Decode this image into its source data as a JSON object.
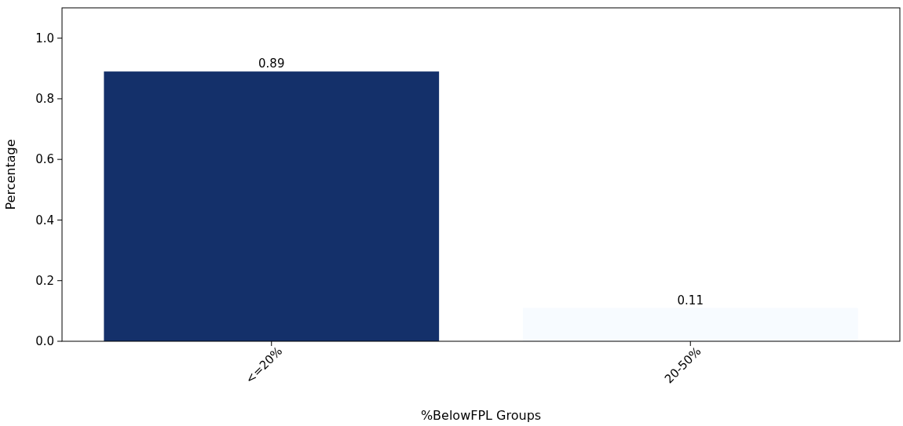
{
  "chart_data": {
    "type": "bar",
    "xlabel": "%BelowFPL Groups",
    "ylabel": "Percentage",
    "categories": [
      "<=20%",
      "20-50%"
    ],
    "values": [
      0.89,
      0.11
    ],
    "colors": [
      "#14306a",
      "#f7fbff"
    ],
    "ylim": [
      0,
      1.1
    ],
    "yticks": [
      {
        "value": 0,
        "label": "0.0"
      },
      {
        "value": 0.2,
        "label": "0.2"
      },
      {
        "value": 0.4,
        "label": "0.4"
      },
      {
        "value": 0.6,
        "label": "0.6"
      },
      {
        "value": 0.8,
        "label": "0.8"
      },
      {
        "value": 1,
        "label": "1.0"
      }
    ],
    "data_labels": true,
    "grid": false
  }
}
